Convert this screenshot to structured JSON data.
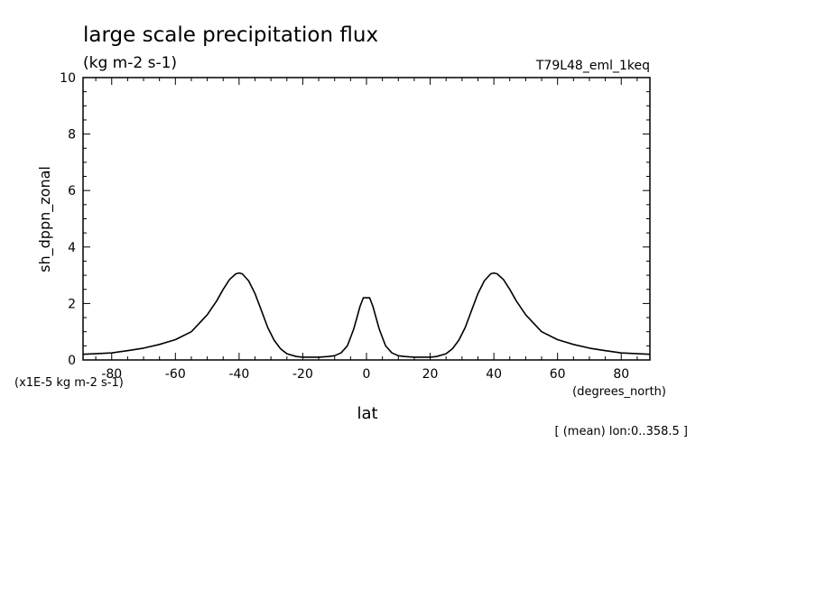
{
  "chart_data": {
    "type": "line",
    "title": "large scale precipitation flux",
    "subtitle": "(kg m-2 s-1)",
    "experiment": "T79L48_eml_1keq",
    "ylabel": "sh_dppn_zonal",
    "xlabel": "lat",
    "y_scale_label": "(x1E-5 kg m-2 s-1)",
    "x_units_label": "(degrees_north)",
    "footer": "[ (mean) lon:0..358.5 ]",
    "xlim": [
      -89,
      89
    ],
    "ylim": [
      0,
      10
    ],
    "x_ticks": [
      -80,
      -60,
      -40,
      -20,
      0,
      20,
      40,
      60,
      80
    ],
    "x_tick_labels": [
      "-80",
      "-60",
      "-40",
      "-20",
      "0",
      "20",
      "40",
      "60",
      "80"
    ],
    "y_ticks": [
      0,
      2,
      4,
      6,
      8,
      10
    ],
    "y_tick_labels": [
      "0",
      "2",
      "4",
      "6",
      "8",
      "10"
    ],
    "grid": false,
    "series": [
      {
        "x": [
          -89,
          -85,
          -80,
          -75,
          -70,
          -65,
          -60,
          -55,
          -50,
          -47,
          -45,
          -43,
          -41,
          -40,
          -39,
          -37,
          -35,
          -33,
          -31,
          -29,
          -27,
          -25,
          -22,
          -20,
          -17,
          -15,
          -12,
          -10,
          -8,
          -6,
          -5,
          -4,
          -3,
          -2,
          -1,
          0,
          1,
          2,
          3,
          4,
          5,
          6,
          8,
          10,
          12,
          15,
          17,
          20,
          22,
          25,
          27,
          29,
          31,
          33,
          35,
          37,
          39,
          40,
          41,
          43,
          45,
          47,
          50,
          55,
          60,
          65,
          70,
          75,
          80,
          85,
          89
        ],
        "y": [
          0.2,
          0.22,
          0.25,
          0.33,
          0.42,
          0.55,
          0.72,
          1.0,
          1.6,
          2.1,
          2.5,
          2.85,
          3.05,
          3.08,
          3.05,
          2.8,
          2.35,
          1.75,
          1.15,
          0.7,
          0.4,
          0.22,
          0.12,
          0.1,
          0.1,
          0.1,
          0.12,
          0.15,
          0.25,
          0.5,
          0.8,
          1.1,
          1.5,
          1.9,
          2.2,
          2.2,
          2.2,
          1.9,
          1.5,
          1.1,
          0.8,
          0.5,
          0.25,
          0.15,
          0.12,
          0.1,
          0.1,
          0.1,
          0.12,
          0.22,
          0.4,
          0.7,
          1.15,
          1.75,
          2.35,
          2.8,
          3.05,
          3.08,
          3.05,
          2.85,
          2.5,
          2.1,
          1.6,
          1.0,
          0.72,
          0.55,
          0.42,
          0.33,
          0.25,
          0.22,
          0.2
        ]
      }
    ]
  }
}
